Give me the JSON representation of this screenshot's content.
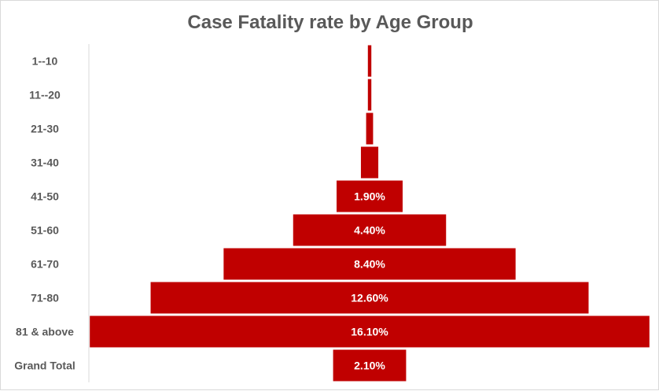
{
  "chart_data": {
    "type": "bar",
    "subtype": "funnel",
    "title": "Case Fatality rate by Age Group",
    "categories": [
      "1--10",
      "11--20",
      "21-30",
      "31-40",
      "41-50",
      "51-60",
      "61-70",
      "71-80",
      "81 & above",
      "Grand Total"
    ],
    "values": [
      0.1,
      0.1,
      0.2,
      0.5,
      1.9,
      4.4,
      8.4,
      12.6,
      16.1,
      2.1
    ],
    "data_labels": [
      "",
      "",
      "",
      "",
      "1.90%",
      "4.40%",
      "8.40%",
      "12.60%",
      "16.10%",
      "2.10%"
    ],
    "unit": "%",
    "xlabel": "",
    "ylabel": "",
    "grid": false,
    "legend": "none",
    "bar_color": "#C00000"
  }
}
